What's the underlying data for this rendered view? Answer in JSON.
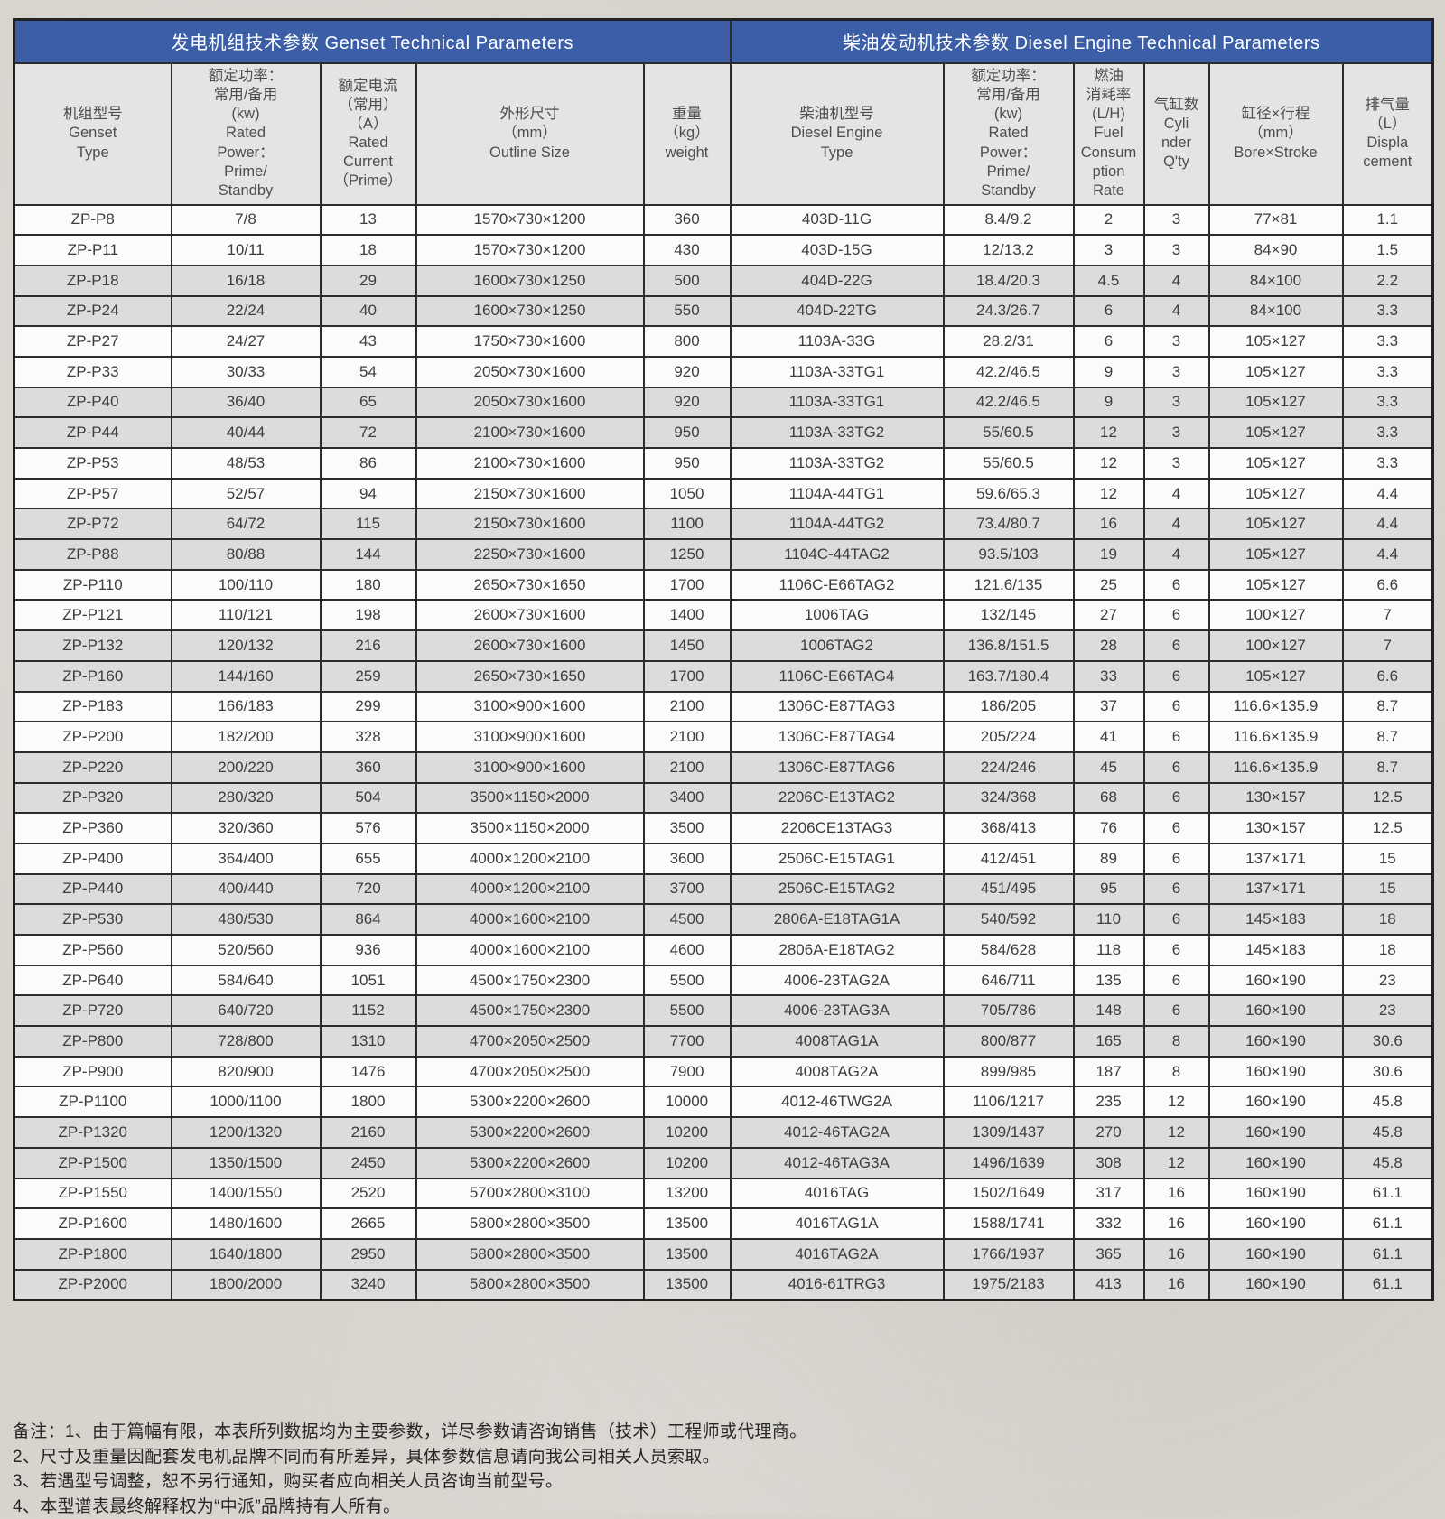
{
  "colors": {
    "header_accent": "#3b5ea7",
    "header_text": "#ffffff",
    "subheader_bg": "#e4e4e4",
    "row_shaded_bg": "#dcdcdc",
    "row_plain_bg": "#fbfbfb",
    "border": "#2c2c2c",
    "page_bg": "#d7d3cd"
  },
  "table": {
    "header": {
      "genset_section": "发电机组技术参数 Genset Technical Parameters",
      "diesel_section": "柴油发动机技术参数 Diesel Engine Technical Parameters"
    },
    "columns": [
      {
        "label": "机组型号\nGenset\nType"
      },
      {
        "label": "额定功率：\n常用/备用\n(kw)\nRated\nPower：\nPrime/\nStandby"
      },
      {
        "label": "额定电流\n（常用）\n（A）\nRated\nCurrent\n（Prime）"
      },
      {
        "label": "外形尺寸\n（mm）\nOutline Size"
      },
      {
        "label": "重量\n（kg）\nweight"
      },
      {
        "label": "柴油机型号\nDiesel Engine\nType"
      },
      {
        "label": "额定功率：\n常用/备用\n(kw)\nRated\nPower：\nPrime/\nStandby"
      },
      {
        "label": "燃油\n消耗率\n(L/H)\nFuel\nConsum\nption\nRate"
      },
      {
        "label": "气缸数\nCyli\nnder\nQ'ty"
      },
      {
        "label": "缸径×行程\n（mm）\nBore×Stroke"
      },
      {
        "label": "排气量\n（L）\nDispla\ncement"
      }
    ],
    "rows": [
      [
        "ZP-P8",
        "7/8",
        "13",
        "1570×730×1200",
        "360",
        "403D-11G",
        "8.4/9.2",
        "2",
        "3",
        "77×81",
        "1.1"
      ],
      [
        "ZP-P11",
        "10/11",
        "18",
        "1570×730×1200",
        "430",
        "403D-15G",
        "12/13.2",
        "3",
        "3",
        "84×90",
        "1.5"
      ],
      [
        "ZP-P18",
        "16/18",
        "29",
        "1600×730×1250",
        "500",
        "404D-22G",
        "18.4/20.3",
        "4.5",
        "4",
        "84×100",
        "2.2"
      ],
      [
        "ZP-P24",
        "22/24",
        "40",
        "1600×730×1250",
        "550",
        "404D-22TG",
        "24.3/26.7",
        "6",
        "4",
        "84×100",
        "3.3"
      ],
      [
        "ZP-P27",
        "24/27",
        "43",
        "1750×730×1600",
        "800",
        "1103A-33G",
        "28.2/31",
        "6",
        "3",
        "105×127",
        "3.3"
      ],
      [
        "ZP-P33",
        "30/33",
        "54",
        "2050×730×1600",
        "920",
        "1103A-33TG1",
        "42.2/46.5",
        "9",
        "3",
        "105×127",
        "3.3"
      ],
      [
        "ZP-P40",
        "36/40",
        "65",
        "2050×730×1600",
        "920",
        "1103A-33TG1",
        "42.2/46.5",
        "9",
        "3",
        "105×127",
        "3.3"
      ],
      [
        "ZP-P44",
        "40/44",
        "72",
        "2100×730×1600",
        "950",
        "1103A-33TG2",
        "55/60.5",
        "12",
        "3",
        "105×127",
        "3.3"
      ],
      [
        "ZP-P53",
        "48/53",
        "86",
        "2100×730×1600",
        "950",
        "1103A-33TG2",
        "55/60.5",
        "12",
        "3",
        "105×127",
        "3.3"
      ],
      [
        "ZP-P57",
        "52/57",
        "94",
        "2150×730×1600",
        "1050",
        "1104A-44TG1",
        "59.6/65.3",
        "12",
        "4",
        "105×127",
        "4.4"
      ],
      [
        "ZP-P72",
        "64/72",
        "115",
        "2150×730×1600",
        "1100",
        "1104A-44TG2",
        "73.4/80.7",
        "16",
        "4",
        "105×127",
        "4.4"
      ],
      [
        "ZP-P88",
        "80/88",
        "144",
        "2250×730×1600",
        "1250",
        "1104C-44TAG2",
        "93.5/103",
        "19",
        "4",
        "105×127",
        "4.4"
      ],
      [
        "ZP-P110",
        "100/110",
        "180",
        "2650×730×1650",
        "1700",
        "1106C-E66TAG2",
        "121.6/135",
        "25",
        "6",
        "105×127",
        "6.6"
      ],
      [
        "ZP-P121",
        "110/121",
        "198",
        "2600×730×1600",
        "1400",
        "1006TAG",
        "132/145",
        "27",
        "6",
        "100×127",
        "7"
      ],
      [
        "ZP-P132",
        "120/132",
        "216",
        "2600×730×1600",
        "1450",
        "1006TAG2",
        "136.8/151.5",
        "28",
        "6",
        "100×127",
        "7"
      ],
      [
        "ZP-P160",
        "144/160",
        "259",
        "2650×730×1650",
        "1700",
        "1106C-E66TAG4",
        "163.7/180.4",
        "33",
        "6",
        "105×127",
        "6.6"
      ],
      [
        "ZP-P183",
        "166/183",
        "299",
        "3100×900×1600",
        "2100",
        "1306C-E87TAG3",
        "186/205",
        "37",
        "6",
        "116.6×135.9",
        "8.7"
      ],
      [
        "ZP-P200",
        "182/200",
        "328",
        "3100×900×1600",
        "2100",
        "1306C-E87TAG4",
        "205/224",
        "41",
        "6",
        "116.6×135.9",
        "8.7"
      ],
      [
        "ZP-P220",
        "200/220",
        "360",
        "3100×900×1600",
        "2100",
        "1306C-E87TAG6",
        "224/246",
        "45",
        "6",
        "116.6×135.9",
        "8.7"
      ],
      [
        "ZP-P320",
        "280/320",
        "504",
        "3500×1150×2000",
        "3400",
        "2206C-E13TAG2",
        "324/368",
        "68",
        "6",
        "130×157",
        "12.5"
      ],
      [
        "ZP-P360",
        "320/360",
        "576",
        "3500×1150×2000",
        "3500",
        "2206CE13TAG3",
        "368/413",
        "76",
        "6",
        "130×157",
        "12.5"
      ],
      [
        "ZP-P400",
        "364/400",
        "655",
        "4000×1200×2100",
        "3600",
        "2506C-E15TAG1",
        "412/451",
        "89",
        "6",
        "137×171",
        "15"
      ],
      [
        "ZP-P440",
        "400/440",
        "720",
        "4000×1200×2100",
        "3700",
        "2506C-E15TAG2",
        "451/495",
        "95",
        "6",
        "137×171",
        "15"
      ],
      [
        "ZP-P530",
        "480/530",
        "864",
        "4000×1600×2100",
        "4500",
        "2806A-E18TAG1A",
        "540/592",
        "110",
        "6",
        "145×183",
        "18"
      ],
      [
        "ZP-P560",
        "520/560",
        "936",
        "4000×1600×2100",
        "4600",
        "2806A-E18TAG2",
        "584/628",
        "118",
        "6",
        "145×183",
        "18"
      ],
      [
        "ZP-P640",
        "584/640",
        "1051",
        "4500×1750×2300",
        "5500",
        "4006-23TAG2A",
        "646/711",
        "135",
        "6",
        "160×190",
        "23"
      ],
      [
        "ZP-P720",
        "640/720",
        "1152",
        "4500×1750×2300",
        "5500",
        "4006-23TAG3A",
        "705/786",
        "148",
        "6",
        "160×190",
        "23"
      ],
      [
        "ZP-P800",
        "728/800",
        "1310",
        "4700×2050×2500",
        "7700",
        "4008TAG1A",
        "800/877",
        "165",
        "8",
        "160×190",
        "30.6"
      ],
      [
        "ZP-P900",
        "820/900",
        "1476",
        "4700×2050×2500",
        "7900",
        "4008TAG2A",
        "899/985",
        "187",
        "8",
        "160×190",
        "30.6"
      ],
      [
        "ZP-P1100",
        "1000/1100",
        "1800",
        "5300×2200×2600",
        "10000",
        "4012-46TWG2A",
        "1106/1217",
        "235",
        "12",
        "160×190",
        "45.8"
      ],
      [
        "ZP-P1320",
        "1200/1320",
        "2160",
        "5300×2200×2600",
        "10200",
        "4012-46TAG2A",
        "1309/1437",
        "270",
        "12",
        "160×190",
        "45.8"
      ],
      [
        "ZP-P1500",
        "1350/1500",
        "2450",
        "5300×2200×2600",
        "10200",
        "4012-46TAG3A",
        "1496/1639",
        "308",
        "12",
        "160×190",
        "45.8"
      ],
      [
        "ZP-P1550",
        "1400/1550",
        "2520",
        "5700×2800×3100",
        "13200",
        "4016TAG",
        "1502/1649",
        "317",
        "16",
        "160×190",
        "61.1"
      ],
      [
        "ZP-P1600",
        "1480/1600",
        "2665",
        "5800×2800×3500",
        "13500",
        "4016TAG1A",
        "1588/1741",
        "332",
        "16",
        "160×190",
        "61.1"
      ],
      [
        "ZP-P1800",
        "1640/1800",
        "2950",
        "5800×2800×3500",
        "13500",
        "4016TAG2A",
        "1766/1937",
        "365",
        "16",
        "160×190",
        "61.1"
      ],
      [
        "ZP-P2000",
        "1800/2000",
        "3240",
        "5800×2800×3500",
        "13500",
        "4016-61TRG3",
        "1975/2183",
        "413",
        "16",
        "160×190",
        "61.1"
      ]
    ]
  },
  "notes": [
    "备注：1、由于篇幅有限，本表所列数据均为主要参数，详尽参数请咨询销售（技术）工程师或代理商。",
    "2、尺寸及重量因配套发电机品牌不同而有所差异，具体参数信息请向我公司相关人员索取。",
    "3、若遇型号调整，恕不另行通知，购买者应向相关人员咨询当前型号。",
    "4、本型谱表最终解释权为“中派”品牌持有人所有。"
  ]
}
